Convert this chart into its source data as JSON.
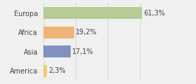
{
  "categories": [
    "Europa",
    "Africa",
    "Asia",
    "America"
  ],
  "values": [
    61.3,
    19.2,
    17.1,
    2.3
  ],
  "labels": [
    "61,3%",
    "19,2%",
    "17,1%",
    "2,3%"
  ],
  "bar_colors": [
    "#b5cc96",
    "#f0b47a",
    "#8090c0",
    "#f0d060"
  ],
  "background_color": "#f0f0f0",
  "xlim": [
    0,
    80
  ],
  "label_fontsize": 7,
  "tick_fontsize": 7
}
